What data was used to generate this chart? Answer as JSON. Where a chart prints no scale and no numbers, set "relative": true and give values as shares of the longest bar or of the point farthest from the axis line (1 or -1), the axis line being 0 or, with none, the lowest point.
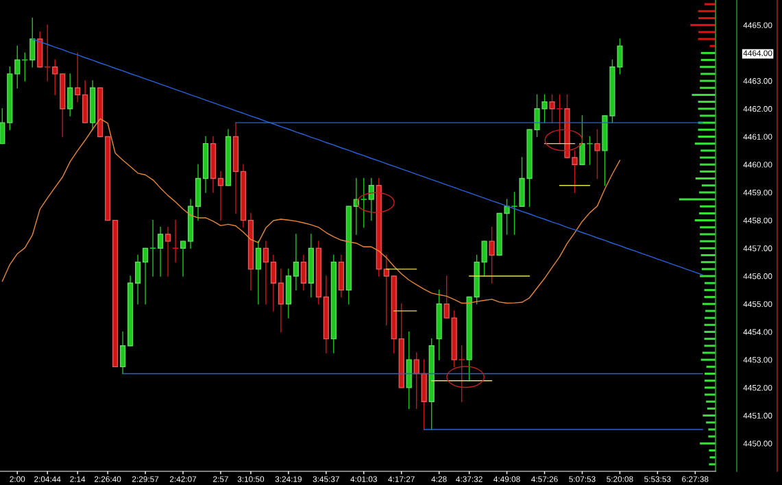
{
  "chart_data": [
    {
      "type": "candlestick",
      "categories": [
        null,
        null,
        "2:00",
        null,
        null,
        null,
        "2:04:44",
        null,
        null,
        null,
        "2:14",
        null,
        null,
        null,
        "2:26:40",
        null,
        null,
        null,
        null,
        "2:29:57",
        null,
        null,
        null,
        null,
        "2:42:07",
        null,
        null,
        null,
        null,
        "2:57",
        null,
        null,
        null,
        "3:10:50",
        null,
        null,
        null,
        null,
        "3:24:19",
        null,
        null,
        null,
        null,
        "3:45:37",
        null,
        null,
        null,
        null,
        "4:01:03",
        null,
        null,
        null,
        null,
        "4:17:27",
        null,
        null,
        null,
        null,
        "4:28",
        null,
        null,
        null,
        "4:37:32",
        null,
        null,
        null,
        null,
        "4:49:08",
        null,
        null,
        null,
        null,
        "4:57:26",
        null,
        null,
        null,
        null,
        "5:07:53",
        null,
        null,
        null,
        null,
        "5:20:08",
        null,
        null,
        null,
        null,
        "5:53:53",
        null,
        null,
        null,
        null,
        "6:27:38",
        null,
        null
      ],
      "ohlc": [
        [
          4460.75,
          4462.0,
          4460.75,
          4461.5
        ],
        [
          4461.5,
          4463.5,
          4461.25,
          4463.25
        ],
        [
          4463.25,
          4464.25,
          4462.75,
          4463.75
        ],
        [
          4463.75,
          4464.0,
          4463.0,
          4463.75
        ],
        [
          4463.75,
          4465.25,
          4463.5,
          4464.5
        ],
        [
          4464.5,
          4464.75,
          4463.5,
          4463.5
        ],
        [
          4463.5,
          4465.0,
          4463.0,
          4463.5
        ],
        [
          4463.5,
          4463.75,
          4462.5,
          4463.25
        ],
        [
          4463.25,
          4463.25,
          4461.0,
          4462.0
        ],
        [
          4462.0,
          4463.25,
          4461.75,
          4462.75
        ],
        [
          4462.75,
          4464.0,
          4462.25,
          4462.5
        ],
        [
          4462.5,
          4463.0,
          4461.5,
          4461.5
        ],
        [
          4461.5,
          4463.0,
          4461.25,
          4462.75
        ],
        [
          4462.75,
          4462.75,
          4461.0,
          4461.0
        ],
        [
          4461.0,
          4461.0,
          4458.0,
          4458.0
        ],
        [
          4458.0,
          4458.0,
          4452.75,
          4452.75
        ],
        [
          4452.75,
          4454.0,
          4452.5,
          4453.5
        ],
        [
          4453.5,
          4456.0,
          4453.5,
          4455.75
        ],
        [
          4455.75,
          4456.75,
          4455.0,
          4456.5
        ],
        [
          4456.5,
          4457.0,
          4455.0,
          4457.0
        ],
        [
          4457.0,
          4458.0,
          4456.0,
          4457.0
        ],
        [
          4457.0,
          4457.75,
          4456.0,
          4457.5
        ],
        [
          4457.5,
          4457.75,
          4456.0,
          4457.25
        ],
        [
          4457.0,
          4458.0,
          4456.5,
          4457.0
        ],
        [
          4457.0,
          4457.25,
          4456.0,
          4457.25
        ],
        [
          4457.25,
          4458.75,
          4457.0,
          4458.5
        ],
        [
          4458.5,
          4460.0,
          4458.0,
          4459.5
        ],
        [
          4459.5,
          4461.0,
          4459.0,
          4460.75
        ],
        [
          4460.75,
          4461.0,
          4459.0,
          4459.5
        ],
        [
          4459.5,
          4459.75,
          4458.0,
          4459.25
        ],
        [
          4459.25,
          4461.25,
          4459.25,
          4461.0
        ],
        [
          4461.0,
          4461.5,
          4458.25,
          4459.75
        ],
        [
          4459.75,
          4460.0,
          4457.75,
          4458.0
        ],
        [
          4458.0,
          4458.25,
          4455.5,
          4456.25
        ],
        [
          4456.25,
          4457.25,
          4455.0,
          4457.0
        ],
        [
          4457.0,
          4457.25,
          4455.0,
          4456.5
        ],
        [
          4456.5,
          4456.75,
          4454.75,
          4455.75
        ],
        [
          4455.75,
          4456.25,
          4454.0,
          4455.0
        ],
        [
          4455.0,
          4456.25,
          4454.5,
          4456.0
        ],
        [
          4456.0,
          4457.5,
          4455.5,
          4456.5
        ],
        [
          4456.5,
          4456.75,
          4455.5,
          4455.75
        ],
        [
          4455.75,
          4457.5,
          4455.25,
          4457.0
        ],
        [
          4457.0,
          4457.25,
          4455.0,
          4455.25
        ],
        [
          4455.25,
          4456.0,
          4453.25,
          4453.75
        ],
        [
          4453.75,
          4456.75,
          4453.25,
          4456.5
        ],
        [
          4456.5,
          4456.75,
          4455.25,
          4455.5
        ],
        [
          4455.5,
          4458.5,
          4455.0,
          4458.5
        ],
        [
          4458.5,
          4459.5,
          4457.5,
          4458.75
        ],
        [
          4458.75,
          4459.5,
          4457.75,
          4458.75
        ],
        [
          4458.75,
          4459.5,
          4458.0,
          4459.25
        ],
        [
          4459.25,
          4459.5,
          4456.0,
          4456.25
        ],
        [
          4456.25,
          4456.75,
          4454.25,
          4456.0
        ],
        [
          4456.0,
          4456.0,
          4453.25,
          4453.75
        ],
        [
          4453.75,
          4455.0,
          4452.0,
          4452.0
        ],
        [
          4452.0,
          4454.0,
          4451.25,
          4453.0
        ],
        [
          4453.0,
          4453.25,
          4451.25,
          4452.5
        ],
        [
          4452.5,
          4453.0,
          4450.5,
          4451.5
        ],
        [
          4451.5,
          4453.75,
          4450.5,
          4453.5
        ],
        [
          4453.75,
          4455.5,
          4453.0,
          4455.0
        ],
        [
          4455.0,
          4456.0,
          4454.5,
          4454.5
        ],
        [
          4454.5,
          4454.75,
          4452.75,
          4453.0
        ],
        [
          4453.0,
          4453.5,
          4451.5,
          4453.0
        ],
        [
          4453.0,
          4455.25,
          4452.25,
          4455.25
        ],
        [
          4455.25,
          4456.75,
          4455.0,
          4456.5
        ],
        [
          4456.5,
          4457.25,
          4456.0,
          4457.25
        ],
        [
          4457.25,
          4457.75,
          4455.75,
          4456.75
        ],
        [
          4456.75,
          4458.25,
          4456.75,
          4458.25
        ],
        [
          4458.25,
          4458.75,
          4457.5,
          4458.5
        ],
        [
          4458.5,
          4459.0,
          4457.5,
          4458.5
        ],
        [
          4458.5,
          4460.25,
          4458.5,
          4459.5
        ],
        [
          4459.5,
          4461.25,
          4458.5,
          4461.25
        ],
        [
          4461.25,
          4462.5,
          4461.0,
          4462.0
        ],
        [
          4462.0,
          4462.5,
          4461.5,
          4462.25
        ],
        [
          4462.25,
          4462.5,
          4461.5,
          4462.0
        ],
        [
          4462.0,
          4462.5,
          4460.75,
          4462.0
        ],
        [
          4462.0,
          4462.5,
          4460.25,
          4460.25
        ],
        [
          4460.25,
          4460.5,
          4459.0,
          4460.0
        ],
        [
          4460.0,
          4461.75,
          4460.0,
          4460.75
        ],
        [
          4460.75,
          4461.0,
          4460.0,
          4460.75
        ],
        [
          4460.75,
          4461.25,
          4459.5,
          4460.5
        ],
        [
          4460.5,
          4461.75,
          4459.25,
          4461.75
        ],
        [
          4461.75,
          4463.75,
          4461.5,
          4463.5
        ],
        [
          4463.5,
          4464.5,
          4463.25,
          4464.25
        ],
        null,
        null,
        null,
        null,
        null,
        null,
        null,
        null,
        null,
        null,
        null,
        null
      ],
      "colors": [
        "#1ec81e",
        "#1ec81e",
        "#1ec81e",
        "#1ec81e",
        "#1ec81e",
        "#d01515",
        "#d01515",
        "#d01515",
        "#d01515",
        "#1ec81e",
        "#d01515",
        "#d01515",
        "#1ec81e",
        "#d01515",
        "#d01515",
        "#d01515",
        "#1ec81e",
        "#1ec81e",
        "#1ec81e",
        "#1ec81e",
        "#1ec81e",
        "#1ec81e",
        "#d01515",
        "#d01515",
        "#1ec81e",
        "#1ec81e",
        "#1ec81e",
        "#1ec81e",
        "#d01515",
        "#d01515",
        "#1ec81e",
        "#d01515",
        "#d01515",
        "#d01515",
        "#1ec81e",
        "#d01515",
        "#d01515",
        "#d01515",
        "#1ec81e",
        "#1ec81e",
        "#d01515",
        "#1ec81e",
        "#d01515",
        "#d01515",
        "#1ec81e",
        "#d01515",
        "#1ec81e",
        "#1ec81e",
        "#1ec81e",
        "#1ec81e",
        "#d01515",
        "#d01515",
        "#d01515",
        "#d01515",
        "#1ec81e",
        "#d01515",
        "#d01515",
        "#1ec81e",
        "#1ec81e",
        "#d01515",
        "#d01515",
        "#d01515",
        "#1ec81e",
        "#1ec81e",
        "#1ec81e",
        "#d01515",
        "#1ec81e",
        "#1ec81e",
        "#1ec81e",
        "#1ec81e",
        "#1ec81e",
        "#1ec81e",
        "#1ec81e",
        "#d01515",
        "#d01515",
        "#d01515",
        "#d01515",
        "#1ec81e",
        "#1ec81e",
        "#d01515",
        "#1ec81e",
        "#1ec81e",
        "#1ec81e",
        null,
        null,
        null,
        null,
        null,
        null,
        null,
        null,
        null,
        null,
        null,
        null
      ],
      "series": [
        {
          "type": "line",
          "color": "#e8873a",
          "values": [
            4455.81,
            4456.41,
            4456.8,
            4457.01,
            4457.47,
            4458.4,
            4458.8,
            4459.18,
            4459.55,
            4460.1,
            4460.5,
            4460.87,
            4461.27,
            4461.64,
            4461.48,
            4460.41,
            4460.16,
            4459.93,
            4459.69,
            4459.63,
            4459.45,
            4459.16,
            4458.89,
            4458.66,
            4458.4,
            4458.18,
            4458.09,
            4458.09,
            4457.97,
            4457.81,
            4457.86,
            4457.8,
            4457.58,
            4457.31,
            4457.2,
            4457.73,
            4457.99,
            4458.04,
            4458.01,
            4457.97,
            4457.91,
            4457.84,
            4457.75,
            4457.56,
            4457.41,
            4457.29,
            4457.23,
            4457.18,
            4457.05,
            4457.05,
            4456.9,
            4456.66,
            4456.35,
            4456.08,
            4455.86,
            4455.69,
            4455.53,
            4455.39,
            4455.33,
            4455.28,
            4455.16,
            4455.03,
            4455.03,
            4455.09,
            4455.13,
            4455.17,
            4455.07,
            4455.03,
            4455.04,
            4455.06,
            4455.22,
            4455.57,
            4455.92,
            4456.31,
            4456.69,
            4457.17,
            4457.55,
            4457.96,
            4458.27,
            4458.51,
            4459.12,
            4459.66,
            4460.15,
            null,
            null,
            null,
            null,
            null,
            null,
            null,
            null,
            null,
            null,
            null,
            null
          ]
        },
        {
          "type": "line",
          "color": "#2b62d9",
          "values": [
            null,
            null,
            null,
            null,
            4464.5,
            4464.4,
            4464.31,
            4464.21,
            4464.12,
            4464.02,
            4463.93,
            4463.83,
            4463.74,
            4463.64,
            4463.55,
            4463.45,
            4463.36,
            4463.26,
            4463.17,
            4463.07,
            4462.98,
            4462.88,
            4462.79,
            4462.69,
            4462.6,
            4462.5,
            4462.41,
            4462.31,
            4462.22,
            4462.12,
            4462.03,
            4461.93,
            4461.84,
            4461.74,
            4461.65,
            4461.55,
            4461.46,
            4461.36,
            4461.27,
            4461.17,
            4461.08,
            4460.98,
            4460.89,
            4460.79,
            4460.7,
            4460.6,
            4460.51,
            4460.41,
            4460.32,
            4460.22,
            4460.13,
            4460.03,
            4459.94,
            4459.84,
            4459.75,
            4459.65,
            4459.56,
            4459.46,
            4459.37,
            4459.27,
            4459.18,
            4459.08,
            4458.99,
            4458.89,
            4458.8,
            4458.7,
            4458.61,
            4458.51,
            4458.42,
            4458.32,
            4458.23,
            4458.13,
            4458.04,
            4457.94,
            4457.85,
            4457.75,
            4457.66,
            4457.56,
            4457.47,
            4457.37,
            4457.28,
            4457.18,
            4457.09,
            4456.99,
            4456.9,
            4456.8,
            4456.71,
            4456.61,
            4456.52,
            4456.42,
            4456.33,
            4456.23,
            4456.14,
            4456.04,
            null
          ]
        },
        {
          "type": "line",
          "color": "#2b62d9",
          "values": [
            null,
            null,
            null,
            null,
            null,
            null,
            null,
            null,
            null,
            null,
            null,
            null,
            null,
            null,
            null,
            null,
            null,
            null,
            null,
            null,
            null,
            null,
            null,
            null,
            null,
            null,
            null,
            null,
            null,
            null,
            null,
            4461.5,
            4461.5,
            4461.5,
            4461.5,
            4461.5,
            4461.5,
            4461.5,
            4461.5,
            4461.5,
            4461.5,
            4461.5,
            4461.5,
            4461.5,
            4461.5,
            4461.5,
            4461.5,
            4461.5,
            4461.5,
            4461.5,
            4461.5,
            4461.5,
            4461.5,
            4461.5,
            4461.5,
            4461.5,
            4461.5,
            4461.5,
            4461.5,
            4461.5,
            4461.5,
            4461.5,
            4461.5,
            4461.5,
            4461.5,
            4461.5,
            4461.5,
            4461.5,
            4461.5,
            4461.5,
            4461.5,
            4461.5,
            4461.5,
            4461.5,
            4461.5,
            4461.5,
            4461.5,
            4461.5,
            4461.5,
            4461.5,
            4461.5,
            4461.5,
            4461.5,
            4461.5,
            4461.5,
            4461.5,
            4461.5,
            4461.5,
            4461.5,
            4461.5,
            4461.5,
            4461.5,
            4461.5,
            4461.5,
            null
          ]
        },
        {
          "type": "line",
          "color": "#2b62d9",
          "values": [
            null,
            null,
            null,
            null,
            null,
            null,
            null,
            null,
            null,
            null,
            null,
            null,
            null,
            null,
            null,
            null,
            4452.5,
            4452.5,
            4452.5,
            4452.5,
            4452.5,
            4452.5,
            4452.5,
            4452.5,
            4452.5,
            4452.5,
            4452.5,
            4452.5,
            4452.5,
            4452.5,
            4452.5,
            4452.5,
            4452.5,
            4452.5,
            4452.5,
            4452.5,
            4452.5,
            4452.5,
            4452.5,
            4452.5,
            4452.5,
            4452.5,
            4452.5,
            4452.5,
            4452.5,
            4452.5,
            4452.5,
            4452.5,
            4452.5,
            4452.5,
            4452.5,
            4452.5,
            4452.5,
            4452.5,
            4452.5,
            4452.5,
            4452.5,
            4452.5,
            4452.5,
            4452.5,
            4452.5,
            4452.5,
            4452.5,
            4452.5,
            4452.5,
            4452.5,
            4452.5,
            4452.5,
            4452.5,
            4452.5,
            4452.5,
            4452.5,
            4452.5,
            4452.5,
            4452.5,
            4452.5,
            4452.5,
            4452.5,
            4452.5,
            4452.5,
            4452.5,
            4452.5,
            4452.5,
            4452.5,
            4452.5,
            4452.5,
            4452.5,
            4452.5,
            4452.5,
            4452.5,
            4452.5,
            4452.5,
            4452.5,
            4452.5,
            null
          ]
        },
        {
          "type": "line",
          "color": "#2b62d9",
          "values": [
            null,
            null,
            null,
            null,
            null,
            null,
            null,
            null,
            null,
            null,
            null,
            null,
            null,
            null,
            null,
            null,
            null,
            null,
            null,
            null,
            null,
            null,
            null,
            null,
            null,
            null,
            null,
            null,
            null,
            null,
            null,
            null,
            null,
            null,
            null,
            null,
            null,
            null,
            null,
            null,
            null,
            null,
            null,
            null,
            null,
            null,
            null,
            null,
            null,
            null,
            null,
            null,
            null,
            null,
            null,
            null,
            4450.5,
            4450.5,
            4450.5,
            4450.5,
            4450.5,
            4450.5,
            4450.5,
            4450.5,
            4450.5,
            4450.5,
            4450.5,
            4450.5,
            4450.5,
            4450.5,
            4450.5,
            4450.5,
            4450.5,
            4450.5,
            4450.5,
            4450.5,
            4450.5,
            4450.5,
            4450.5,
            4450.5,
            4450.5,
            4450.5,
            4450.5,
            4450.5,
            4450.5,
            4450.5,
            4450.5,
            4450.5,
            4450.5,
            4450.5,
            4450.5,
            4450.5,
            4450.5,
            4450.5,
            null
          ]
        },
        {
          "type": "line",
          "color": "#e8e05a",
          "values": [
            null,
            null,
            null,
            null,
            null,
            null,
            null,
            null,
            null,
            null,
            null,
            null,
            null,
            null,
            null,
            null,
            null,
            null,
            null,
            null,
            null,
            null,
            null,
            null,
            null,
            null,
            null,
            null,
            null,
            null,
            null,
            null,
            null,
            null,
            null,
            null,
            null,
            null,
            null,
            null,
            null,
            null,
            null,
            null,
            null,
            null,
            null,
            null,
            null,
            null,
            null,
            4456.25,
            4456.25,
            4456.25,
            4456.25,
            4456.25,
            null,
            null,
            null,
            null,
            null,
            null,
            null,
            null,
            null,
            null,
            null,
            null,
            null,
            null,
            null,
            null,
            null,
            null,
            null,
            null,
            null,
            null,
            null,
            null,
            null,
            null,
            null,
            null,
            null,
            null,
            null,
            null,
            null,
            null,
            null,
            null,
            null,
            null,
            null
          ]
        },
        {
          "type": "line",
          "color": "#e8e05a",
          "values": [
            null,
            null,
            null,
            null,
            null,
            null,
            null,
            null,
            null,
            null,
            null,
            null,
            null,
            null,
            null,
            null,
            null,
            null,
            null,
            null,
            null,
            null,
            null,
            null,
            null,
            null,
            null,
            null,
            null,
            null,
            null,
            null,
            null,
            null,
            null,
            null,
            null,
            null,
            null,
            null,
            null,
            null,
            null,
            null,
            null,
            null,
            null,
            null,
            null,
            null,
            null,
            null,
            4454.75,
            4454.75,
            4454.75,
            4454.75,
            null,
            null,
            null,
            null,
            null,
            null,
            null,
            null,
            null,
            null,
            null,
            null,
            null,
            null,
            null,
            null,
            null,
            null,
            null,
            null,
            null,
            null,
            null,
            null,
            null,
            null,
            null,
            null,
            null,
            null,
            null,
            null,
            null,
            null,
            null,
            null,
            null,
            null,
            null
          ]
        },
        {
          "type": "line",
          "color": "#e8e05a",
          "values": [
            null,
            null,
            null,
            null,
            null,
            null,
            null,
            null,
            null,
            null,
            null,
            null,
            null,
            null,
            null,
            null,
            null,
            null,
            null,
            null,
            null,
            null,
            null,
            null,
            null,
            null,
            null,
            null,
            null,
            null,
            null,
            null,
            null,
            null,
            null,
            null,
            null,
            null,
            null,
            null,
            null,
            null,
            null,
            null,
            null,
            null,
            null,
            null,
            null,
            null,
            null,
            null,
            null,
            null,
            null,
            null,
            null,
            null,
            null,
            null,
            null,
            null,
            4456.0,
            4456.0,
            4456.0,
            4456.0,
            4456.0,
            4456.0,
            4456.0,
            4456.0,
            4456.0,
            null,
            null,
            null,
            null,
            null,
            null,
            null,
            null,
            null,
            null,
            null,
            null,
            null,
            null,
            null,
            null,
            null,
            null,
            null,
            null,
            null,
            null,
            null,
            null
          ]
        },
        {
          "type": "line",
          "color": "#e8e05a",
          "values": [
            null,
            null,
            null,
            null,
            null,
            null,
            null,
            null,
            null,
            null,
            null,
            null,
            null,
            null,
            null,
            null,
            null,
            null,
            null,
            null,
            null,
            null,
            null,
            null,
            null,
            null,
            null,
            null,
            null,
            null,
            null,
            null,
            null,
            null,
            null,
            null,
            null,
            null,
            null,
            null,
            null,
            null,
            null,
            null,
            null,
            null,
            null,
            null,
            null,
            null,
            null,
            null,
            null,
            null,
            null,
            null,
            null,
            4452.25,
            4452.25,
            4452.25,
            4452.25,
            4452.25,
            4452.25,
            4452.25,
            4452.25,
            4452.25,
            null,
            null,
            null,
            null,
            null,
            null,
            null,
            null,
            null,
            null,
            null,
            null,
            null,
            null,
            null,
            null,
            null,
            null,
            null,
            null,
            null,
            null,
            null,
            null,
            null,
            null,
            null,
            null,
            null
          ]
        },
        {
          "type": "line",
          "color": "#e8e05a",
          "values": [
            null,
            null,
            null,
            null,
            null,
            null,
            null,
            null,
            null,
            null,
            null,
            null,
            null,
            null,
            null,
            null,
            null,
            null,
            null,
            null,
            null,
            null,
            null,
            null,
            null,
            null,
            null,
            null,
            null,
            null,
            null,
            null,
            null,
            null,
            null,
            null,
            null,
            null,
            null,
            null,
            null,
            null,
            null,
            null,
            null,
            null,
            null,
            null,
            null,
            null,
            null,
            null,
            null,
            null,
            null,
            null,
            null,
            null,
            null,
            null,
            null,
            null,
            null,
            null,
            null,
            null,
            null,
            null,
            null,
            null,
            null,
            null,
            4460.75,
            4460.75,
            4460.75,
            4460.75,
            4460.75,
            null,
            null,
            null,
            null,
            null,
            null,
            null,
            null,
            null,
            null,
            null,
            null,
            null,
            null,
            null,
            null,
            null,
            null
          ]
        },
        {
          "type": "line",
          "color": "#e8e05a",
          "values": [
            null,
            null,
            null,
            null,
            null,
            null,
            null,
            null,
            null,
            null,
            null,
            null,
            null,
            null,
            null,
            null,
            null,
            null,
            null,
            null,
            null,
            null,
            null,
            null,
            null,
            null,
            null,
            null,
            null,
            null,
            null,
            null,
            null,
            null,
            null,
            null,
            null,
            null,
            null,
            null,
            null,
            null,
            null,
            null,
            null,
            null,
            null,
            null,
            null,
            null,
            null,
            null,
            null,
            null,
            null,
            null,
            null,
            null,
            null,
            null,
            null,
            null,
            null,
            null,
            null,
            null,
            null,
            null,
            null,
            null,
            null,
            null,
            null,
            null,
            4459.25,
            4459.25,
            4459.25,
            4459.25,
            4459.25,
            null,
            null,
            null,
            null,
            null,
            null,
            null,
            null,
            null,
            null,
            null,
            null,
            null,
            null,
            null,
            null
          ]
        }
      ],
      "ylim": [
        4449.0,
        4465.9
      ],
      "tick_labels": "x",
      "line_style": "solid"
    },
    {
      "type": "bar",
      "orientation": "horizontal",
      "relative": true,
      "x": [
        4465.75,
        4465.5,
        4465.25,
        4465.0,
        4464.75,
        4464.5,
        4464.25,
        4464.0,
        4463.75,
        4463.5,
        4463.25,
        4463.0,
        4462.75,
        4462.5,
        4462.25,
        4462.0,
        4461.75,
        4461.5,
        4461.25,
        4461.0,
        4460.75,
        4460.5,
        4460.25,
        4460.0,
        4459.75,
        4459.5,
        4459.25,
        4459.0,
        4458.75,
        4458.5,
        4458.25,
        4458.0,
        4457.75,
        4457.5,
        4457.25,
        4457.0,
        4456.75,
        4456.5,
        4456.25,
        4456.0,
        4455.75,
        4455.5,
        4455.25,
        4455.0,
        4454.75,
        4454.5,
        4454.25,
        4454.0,
        4453.75,
        4453.5,
        4453.25,
        4453.0,
        4452.75,
        4452.5,
        4452.25,
        4452.0,
        4451.75,
        4451.5,
        4451.25,
        4451.0,
        4450.75,
        4450.5,
        4450.25,
        4450.0,
        4449.75,
        4449.5,
        4449.25
      ],
      "values": [
        0.3,
        0.48,
        0.47,
        0.69,
        0.47,
        0.48,
        0.16,
        0.4,
        0.4,
        0.43,
        0.41,
        0.43,
        0.43,
        0.65,
        0.48,
        0.48,
        0.43,
        0.48,
        0.48,
        0.48,
        0.57,
        0.41,
        0.43,
        0.43,
        0.43,
        0.55,
        0.38,
        0.45,
        1.0,
        0.43,
        0.45,
        0.57,
        0.43,
        0.43,
        0.43,
        0.43,
        0.4,
        0.4,
        0.38,
        0.43,
        0.3,
        0.31,
        0.31,
        0.36,
        0.28,
        0.3,
        0.31,
        0.31,
        0.31,
        0.31,
        0.36,
        0.4,
        0.25,
        0.3,
        0.3,
        0.3,
        0.3,
        0.26,
        0.23,
        0.35,
        0.26,
        0.2,
        0.2,
        0.43,
        0.18,
        0.16,
        0.18
      ],
      "colors": [
        "#e01010",
        "#e01010",
        "#e01010",
        "#e01010",
        "#e01010",
        "#e01010",
        "#e01010",
        "#3ae03a",
        "#3ae03a",
        "#3ae03a",
        "#3ae03a",
        "#3ae03a",
        "#3ae03a",
        "#3ae03a",
        "#3ae03a",
        "#3ae03a",
        "#3ae03a",
        "#3ae03a",
        "#3ae03a",
        "#3ae03a",
        "#3ae03a",
        "#3ae03a",
        "#3ae03a",
        "#3ae03a",
        "#3ae03a",
        "#3ae03a",
        "#3ae03a",
        "#3ae03a",
        "#3ae03a",
        "#3ae03a",
        "#3ae03a",
        "#3ae03a",
        "#3ae03a",
        "#3ae03a",
        "#3ae03a",
        "#3ae03a",
        "#3ae03a",
        "#3ae03a",
        "#3ae03a",
        "#3ae03a",
        "#3ae03a",
        "#3ae03a",
        "#3ae03a",
        "#3ae03a",
        "#3ae03a",
        "#3ae03a",
        "#3ae03a",
        "#3ae03a",
        "#3ae03a",
        "#3ae03a",
        "#3ae03a",
        "#3ae03a",
        "#3ae03a",
        "#3ae03a",
        "#3ae03a",
        "#3ae03a",
        "#3ae03a",
        "#3ae03a",
        "#3ae03a",
        "#3ae03a",
        "#3ae03a",
        "#3ae03a",
        "#3ae03a",
        "#3ae03a",
        "#3ae03a",
        "#3ae03a",
        "#3ae03a"
      ],
      "ylim": [
        4449.0,
        4465.9
      ],
      "yticks": [
        {
          "value": 4450,
          "label": "4450.00"
        },
        {
          "value": 4451,
          "label": "4451.00"
        },
        {
          "value": 4452,
          "label": "4452.00"
        },
        {
          "value": 4453,
          "label": "4453.00"
        },
        {
          "value": 4454,
          "label": "4454.00"
        },
        {
          "value": 4455,
          "label": "4455.00"
        },
        {
          "value": 4456,
          "label": "4456.00"
        },
        {
          "value": 4457,
          "label": "4457.00"
        },
        {
          "value": 4458,
          "label": "4458.00"
        },
        {
          "value": 4459,
          "label": "4459.00"
        },
        {
          "value": 4460,
          "label": "4460.00"
        },
        {
          "value": 4461,
          "label": "4461.00"
        },
        {
          "value": 4462,
          "label": "4462.00"
        },
        {
          "value": 4463,
          "label": "4463.00"
        },
        {
          "value": 4464,
          "label": "4464.00"
        },
        {
          "value": 4465,
          "label": "4465.00"
        }
      ]
    }
  ]
}
